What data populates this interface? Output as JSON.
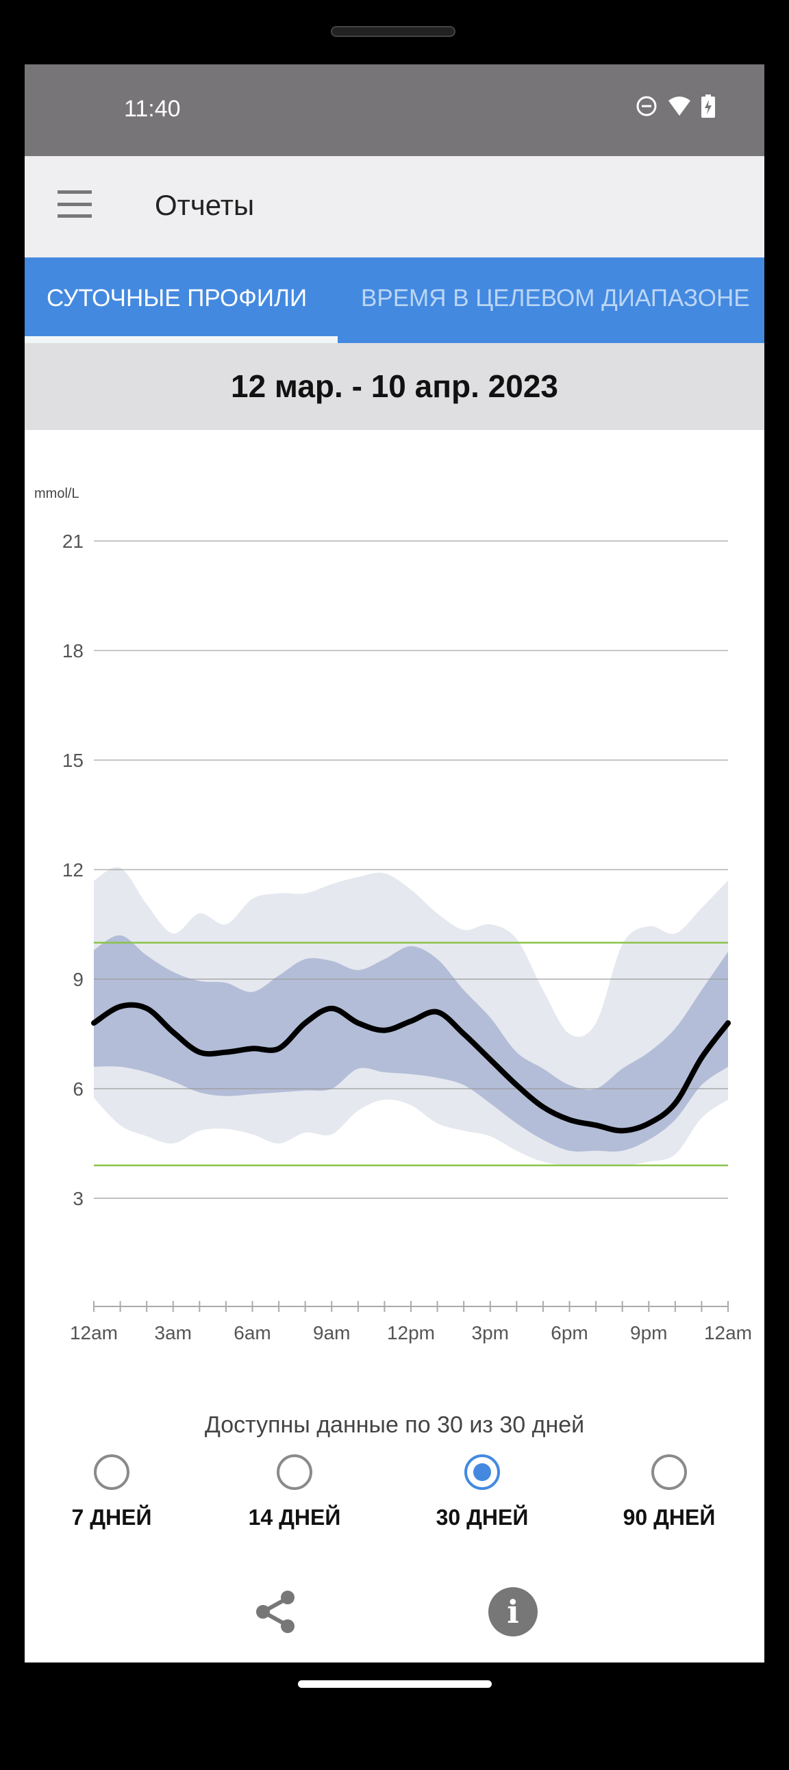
{
  "status_bar": {
    "time": "11:40",
    "icons": [
      "do-not-disturb-icon",
      "wifi-icon",
      "battery-charging-icon"
    ]
  },
  "app_bar": {
    "title": "Отчеты",
    "menu_icon": "hamburger-menu-icon"
  },
  "tabs": [
    {
      "label": "СУТОЧНЫЕ ПРОФИЛИ",
      "selected": true
    },
    {
      "label": "ВРЕМЯ В ЦЕЛЕВОМ ДИАПАЗОНЕ",
      "selected": false
    }
  ],
  "date_range": "12 мар. - 10 апр. 2023",
  "colors": {
    "tab_bar": "#4389e0",
    "outer_band": "#e5e8ef",
    "inner_band": "#b3bdd7",
    "median": "#000000",
    "target": "#8bc34a"
  },
  "chart_data": {
    "type": "area",
    "ylabel": "mmol/L",
    "ylim": [
      0,
      21
    ],
    "yticks": [
      3,
      6,
      9,
      12,
      15,
      18,
      21
    ],
    "xticks": [
      "12am",
      "3am",
      "6am",
      "9am",
      "12pm",
      "3pm",
      "6pm",
      "9pm",
      "12am"
    ],
    "x_hours": [
      0,
      1,
      2,
      3,
      4,
      5,
      6,
      7,
      8,
      9,
      10,
      11,
      12,
      13,
      14,
      15,
      16,
      17,
      18,
      19,
      20,
      21,
      22,
      23,
      24
    ],
    "target_range": [
      3.9,
      10.0
    ],
    "grid": true,
    "series": [
      {
        "key": "p95",
        "values": [
          11.7,
          12.05,
          11.05,
          10.25,
          10.8,
          10.5,
          11.2,
          11.35,
          11.35,
          11.6,
          11.8,
          11.9,
          11.45,
          10.8,
          10.35,
          10.5,
          10.1,
          8.7,
          7.5,
          7.8,
          9.95,
          10.45,
          10.25,
          10.95,
          11.7
        ]
      },
      {
        "key": "p75",
        "values": [
          9.8,
          10.2,
          9.65,
          9.2,
          8.95,
          8.9,
          8.65,
          9.1,
          9.55,
          9.5,
          9.25,
          9.55,
          9.9,
          9.55,
          8.7,
          7.95,
          7.0,
          6.55,
          6.1,
          6.0,
          6.55,
          7.0,
          7.65,
          8.7,
          9.75
        ]
      },
      {
        "key": "median",
        "values": [
          7.8,
          8.25,
          8.2,
          7.55,
          7.0,
          7.0,
          7.1,
          7.1,
          7.8,
          8.2,
          7.8,
          7.6,
          7.85,
          8.1,
          7.5,
          6.8,
          6.1,
          5.5,
          5.15,
          5.0,
          4.85,
          5.05,
          5.6,
          6.85,
          7.8
        ]
      },
      {
        "key": "p25",
        "values": [
          6.6,
          6.6,
          6.45,
          6.2,
          5.9,
          5.8,
          5.85,
          5.9,
          5.95,
          6.0,
          6.55,
          6.45,
          6.4,
          6.3,
          6.1,
          5.6,
          5.05,
          4.6,
          4.3,
          4.3,
          4.3,
          4.6,
          5.15,
          6.1,
          6.6
        ]
      },
      {
        "key": "p5",
        "values": [
          5.75,
          5.0,
          4.7,
          4.5,
          4.85,
          4.9,
          4.75,
          4.5,
          4.8,
          4.75,
          5.4,
          5.7,
          5.55,
          5.05,
          4.85,
          4.7,
          4.3,
          4.0,
          3.9,
          3.9,
          3.9,
          4.0,
          4.2,
          5.2,
          5.7
        ]
      }
    ]
  },
  "availability": "Доступны данные по 30 из 30 дней",
  "periods": [
    {
      "label": "7 ДНЕЙ",
      "selected": false
    },
    {
      "label": "14 ДНЕЙ",
      "selected": false
    },
    {
      "label": "30 ДНЕЙ",
      "selected": true
    },
    {
      "label": "90 ДНЕЙ",
      "selected": false
    }
  ],
  "actions": {
    "share_icon": "share-icon",
    "info_icon": "info-icon",
    "info_glyph": "i"
  }
}
